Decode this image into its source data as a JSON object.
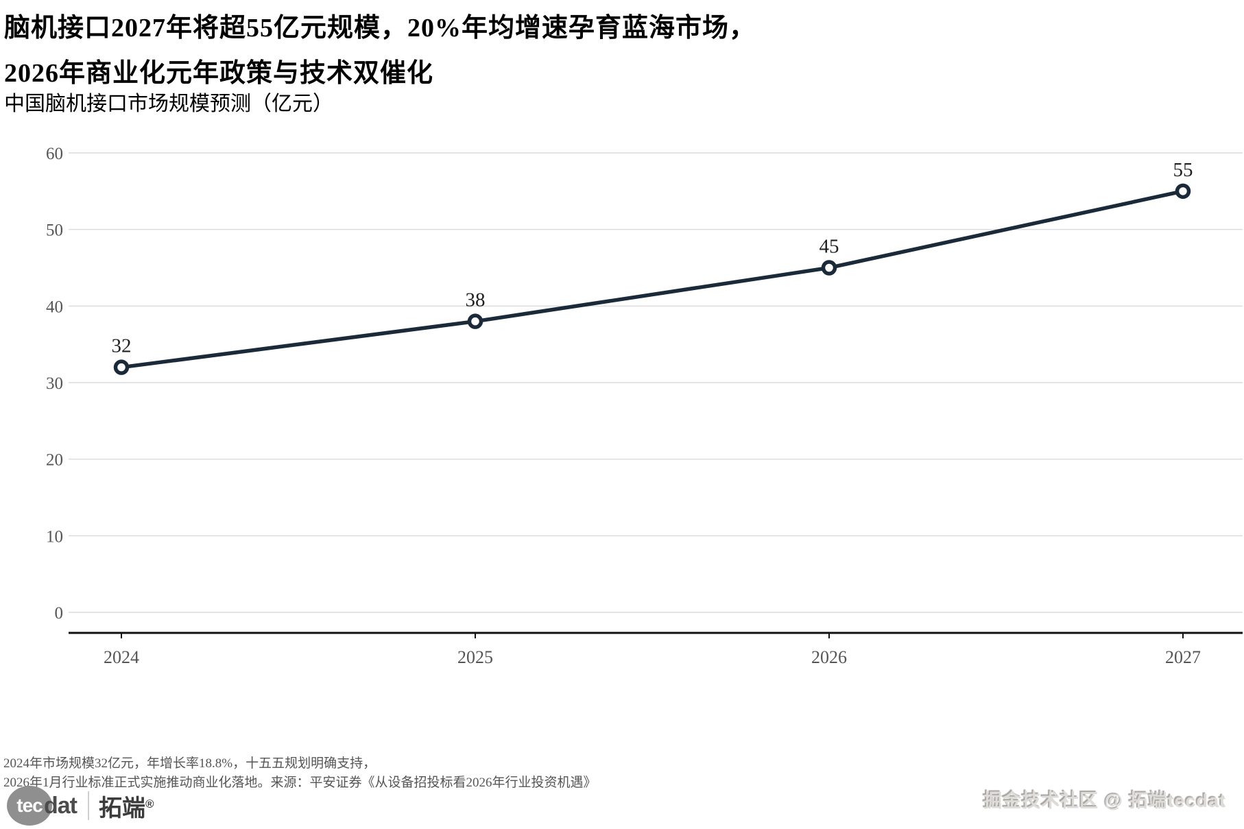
{
  "title": {
    "line1": "脑机接口2027年将超55亿元规模，20%年均增速孕育蓝海市场，",
    "line2": "2026年商业化元年政策与技术双催化"
  },
  "subtitle": "中国脑机接口市场规模预测（亿元）",
  "chart_data": {
    "type": "line",
    "title": "中国脑机接口市场规模预测（亿元）",
    "categories": [
      "2024",
      "2025",
      "2026",
      "2027"
    ],
    "series": [
      {
        "name": "中国脑机接口市场规模（亿元）",
        "values": [
          32,
          38,
          45,
          55
        ]
      }
    ],
    "point_labels": [
      "32",
      "38",
      "45",
      "55"
    ],
    "xlabel": "",
    "ylabel": "",
    "ylim": [
      0,
      60
    ],
    "yticks": [
      0,
      10,
      20,
      30,
      40,
      50,
      60
    ],
    "grid": "horizontal",
    "legend": "none",
    "marker": "open-circle"
  },
  "footnote": {
    "line1": "2024年市场规模32亿元，年增长率18.8%，十五五规划明确支持，",
    "line2": "2026年1月行业标准正式实施推动商业化落地。来源：平安证券《从设备招投标看2026年行业投资机遇》"
  },
  "branding": {
    "logo_tec": "tec",
    "logo_dat": "dat",
    "logo_cn": "拓端",
    "logo_reg": "®",
    "watermark": "掘金技术社区 @ 拓端tecdat"
  },
  "colors": {
    "line": "#1a2a38",
    "grid": "#dcdcdc",
    "axis": "#111111",
    "tick_label": "#555555",
    "value_label": "#1f1f1f",
    "title": "#000000",
    "footnote": "#555555",
    "watermark": "#dedcd9",
    "logo_gray": "#8f8f8f"
  }
}
